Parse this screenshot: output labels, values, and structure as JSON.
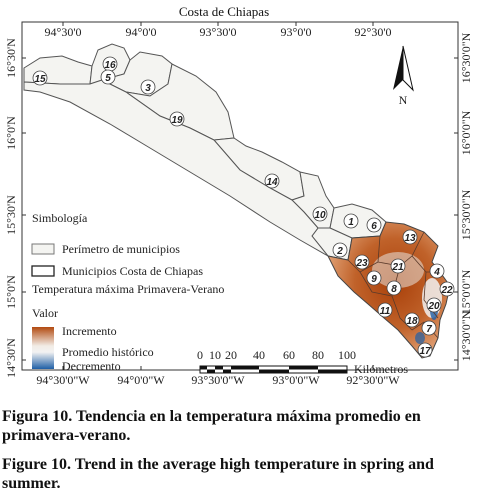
{
  "map": {
    "title": "Costa de Chiapas",
    "top_longitudes": [
      "94°30'0",
      "94°0'0",
      "93°30'0",
      "93°0'0",
      "92°30'0"
    ],
    "bottom_longitudes": [
      "94°30'0\"W",
      "94°0'0\"W",
      "93°30'0\"W",
      "93°0'0\"W",
      "92°30'0\"W"
    ],
    "left_latitudes": [
      "16°30'N",
      "16°0'N",
      "15°30'N",
      "15°0'N",
      "14°30'N"
    ],
    "right_latitudes": [
      "16°30'0\"N",
      "16°0'0\"N",
      "15°30'0\"N",
      "15°0'0\"N",
      "14°30'0\"N"
    ],
    "north_label": "N",
    "municipalities": [
      "15",
      "16",
      "5",
      "3",
      "19",
      "14",
      "10",
      "1",
      "6",
      "2",
      "13",
      "23",
      "21",
      "9",
      "8",
      "11",
      "18",
      "4",
      "22",
      "20",
      "7",
      "17"
    ],
    "colors": {
      "increment": "#b24a10",
      "historic": "#f2f2f2",
      "decrement": "#1f5fa6",
      "boundary": "#555555"
    }
  },
  "legend": {
    "title": "Simbología",
    "perimeter": "Perímetro de municipios",
    "coast_municipalities": "Municipios Costa de Chiapas",
    "temp_title": "Temperatura máxima Primavera-Verano",
    "value_title": "Valor",
    "increment": "Incremento",
    "historic": "Promedio histórico",
    "decrement": "Decremento"
  },
  "scale": {
    "ticks": [
      "0",
      "10",
      "20",
      "40",
      "60",
      "80",
      "100"
    ],
    "unit": "Kilómetros"
  },
  "caption": {
    "es_num": "Figura 10.",
    "es_text": "Tendencia en la temperatura máxima promedio en primavera-verano.",
    "en_num": "Figure 10.",
    "en_text": "Trend in the average high temperature in spring and summer."
  }
}
